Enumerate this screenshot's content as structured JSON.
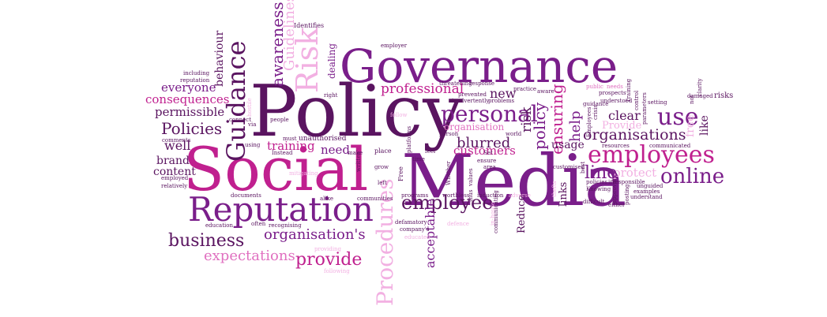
{
  "colors": {
    "dark_purple": "#5a1460",
    "purple": "#7a1e8a",
    "magenta": "#c0208f",
    "pink": "#e070c0",
    "light_pink": "#f2b0e2",
    "pale_pink": "#f6cfee"
  },
  "words": {
    "social": "Social",
    "media": "Media",
    "policy": "Policy",
    "governance": "Governance",
    "reputation": "Reputation",
    "risk": "Risk",
    "guidance": "Guidance",
    "guidelines_small": "guidelines",
    "guidelines_cap": "Guidelines",
    "awareness": "awareness",
    "dealing": "dealing",
    "identifies": "Identifies",
    "employer": "employer",
    "behaviour": "behaviour",
    "including": "including",
    "reputation_small": "reputation",
    "everyone": "everyone",
    "consequences": "consequences",
    "permissible": "permissible",
    "policies": "Policies",
    "well": "well",
    "brand": "brand",
    "content": "content",
    "comments": "comments",
    "employed": "employed",
    "relatively": "relatively",
    "professional": "professional",
    "personal": "personal",
    "organisation": "organisation",
    "new": "new",
    "threatening": "threatening",
    "response": "response",
    "prevented": "prevented",
    "inadvertently": "inadvertently",
    "practice": "practice",
    "problems": "problems",
    "aware": "aware",
    "ensuring": "ensuring",
    "use": "use",
    "employees": "employees",
    "online": "online",
    "organisations": "organisations",
    "clear": "clear",
    "provide_cap": "Provide",
    "help": "help",
    "risk_small": "risk",
    "policy_small": "policy",
    "like": "like",
    "free": "free",
    "usage": "usage",
    "protect": "protect",
    "line": "line",
    "links": "links",
    "training": "training",
    "need": "need",
    "blurred": "blurred",
    "customers": "customers",
    "employee": "employee",
    "business": "business",
    "organisations_apos": "organisation's",
    "expectations": "expectations",
    "provide": "provide",
    "procedures": "Procedures",
    "acceptable": "acceptable",
    "reduce": "Reduce",
    "unauthorised": "unauthorised",
    "must": "must",
    "instead": "Instead",
    "using": "using",
    "people": "people",
    "connect": "connect",
    "via": "via",
    "documents": "documents",
    "alike": "alike",
    "education": "education",
    "often": "often",
    "recognising": "recognising",
    "communities": "communities",
    "programs": "programs",
    "worthless": "worthless",
    "induction": "induction",
    "defamatory": "defamatory",
    "companys": "company's",
    "educated": "educated",
    "providing": "providing",
    "following": "following",
    "mitigating": "mitigating",
    "place": "place",
    "grow": "grow",
    "left": "left",
    "make": "make",
    "written": "written",
    "platforms": "platforms",
    "feel": "feel",
    "time": "time",
    "person": "person",
    "ensure": "ensure",
    "area": "area",
    "world": "world",
    "whether": "Whether",
    "values": "values",
    "set": "Set",
    "communicating": "communicating",
    "difficult": "difficult",
    "knowing": "Knowing",
    "policies_small": "policies",
    "irresponsible": "irresponsible",
    "examples": "examples",
    "unguided": "unguided",
    "understand": "understand",
    "either": "either",
    "posting": "posting",
    "communicated": "communicated",
    "resources": "resources",
    "risks": "risks",
    "damaged": "damaged",
    "setting": "setting",
    "clarity": "clarity",
    "parameters": "parameters",
    "control": "control",
    "understood": "understood",
    "guidance_small": "guidance",
    "training_cap": "Training",
    "needs": "needs",
    "public": "public",
    "prospects": "prospects",
    "employees_small": "Employees",
    "crisis": "crisis",
    "approval": "approval",
    "customised": "customised",
    "not": "not",
    "right": "right",
    "follow": "follow",
    "free_cap": "Free",
    "thus": "thus",
    "in_house": "in-house",
    "best": "best",
    "thefts": "thefts",
    "defence": "defence",
    "adverse": "adverse",
    "hostile": "hostile"
  }
}
